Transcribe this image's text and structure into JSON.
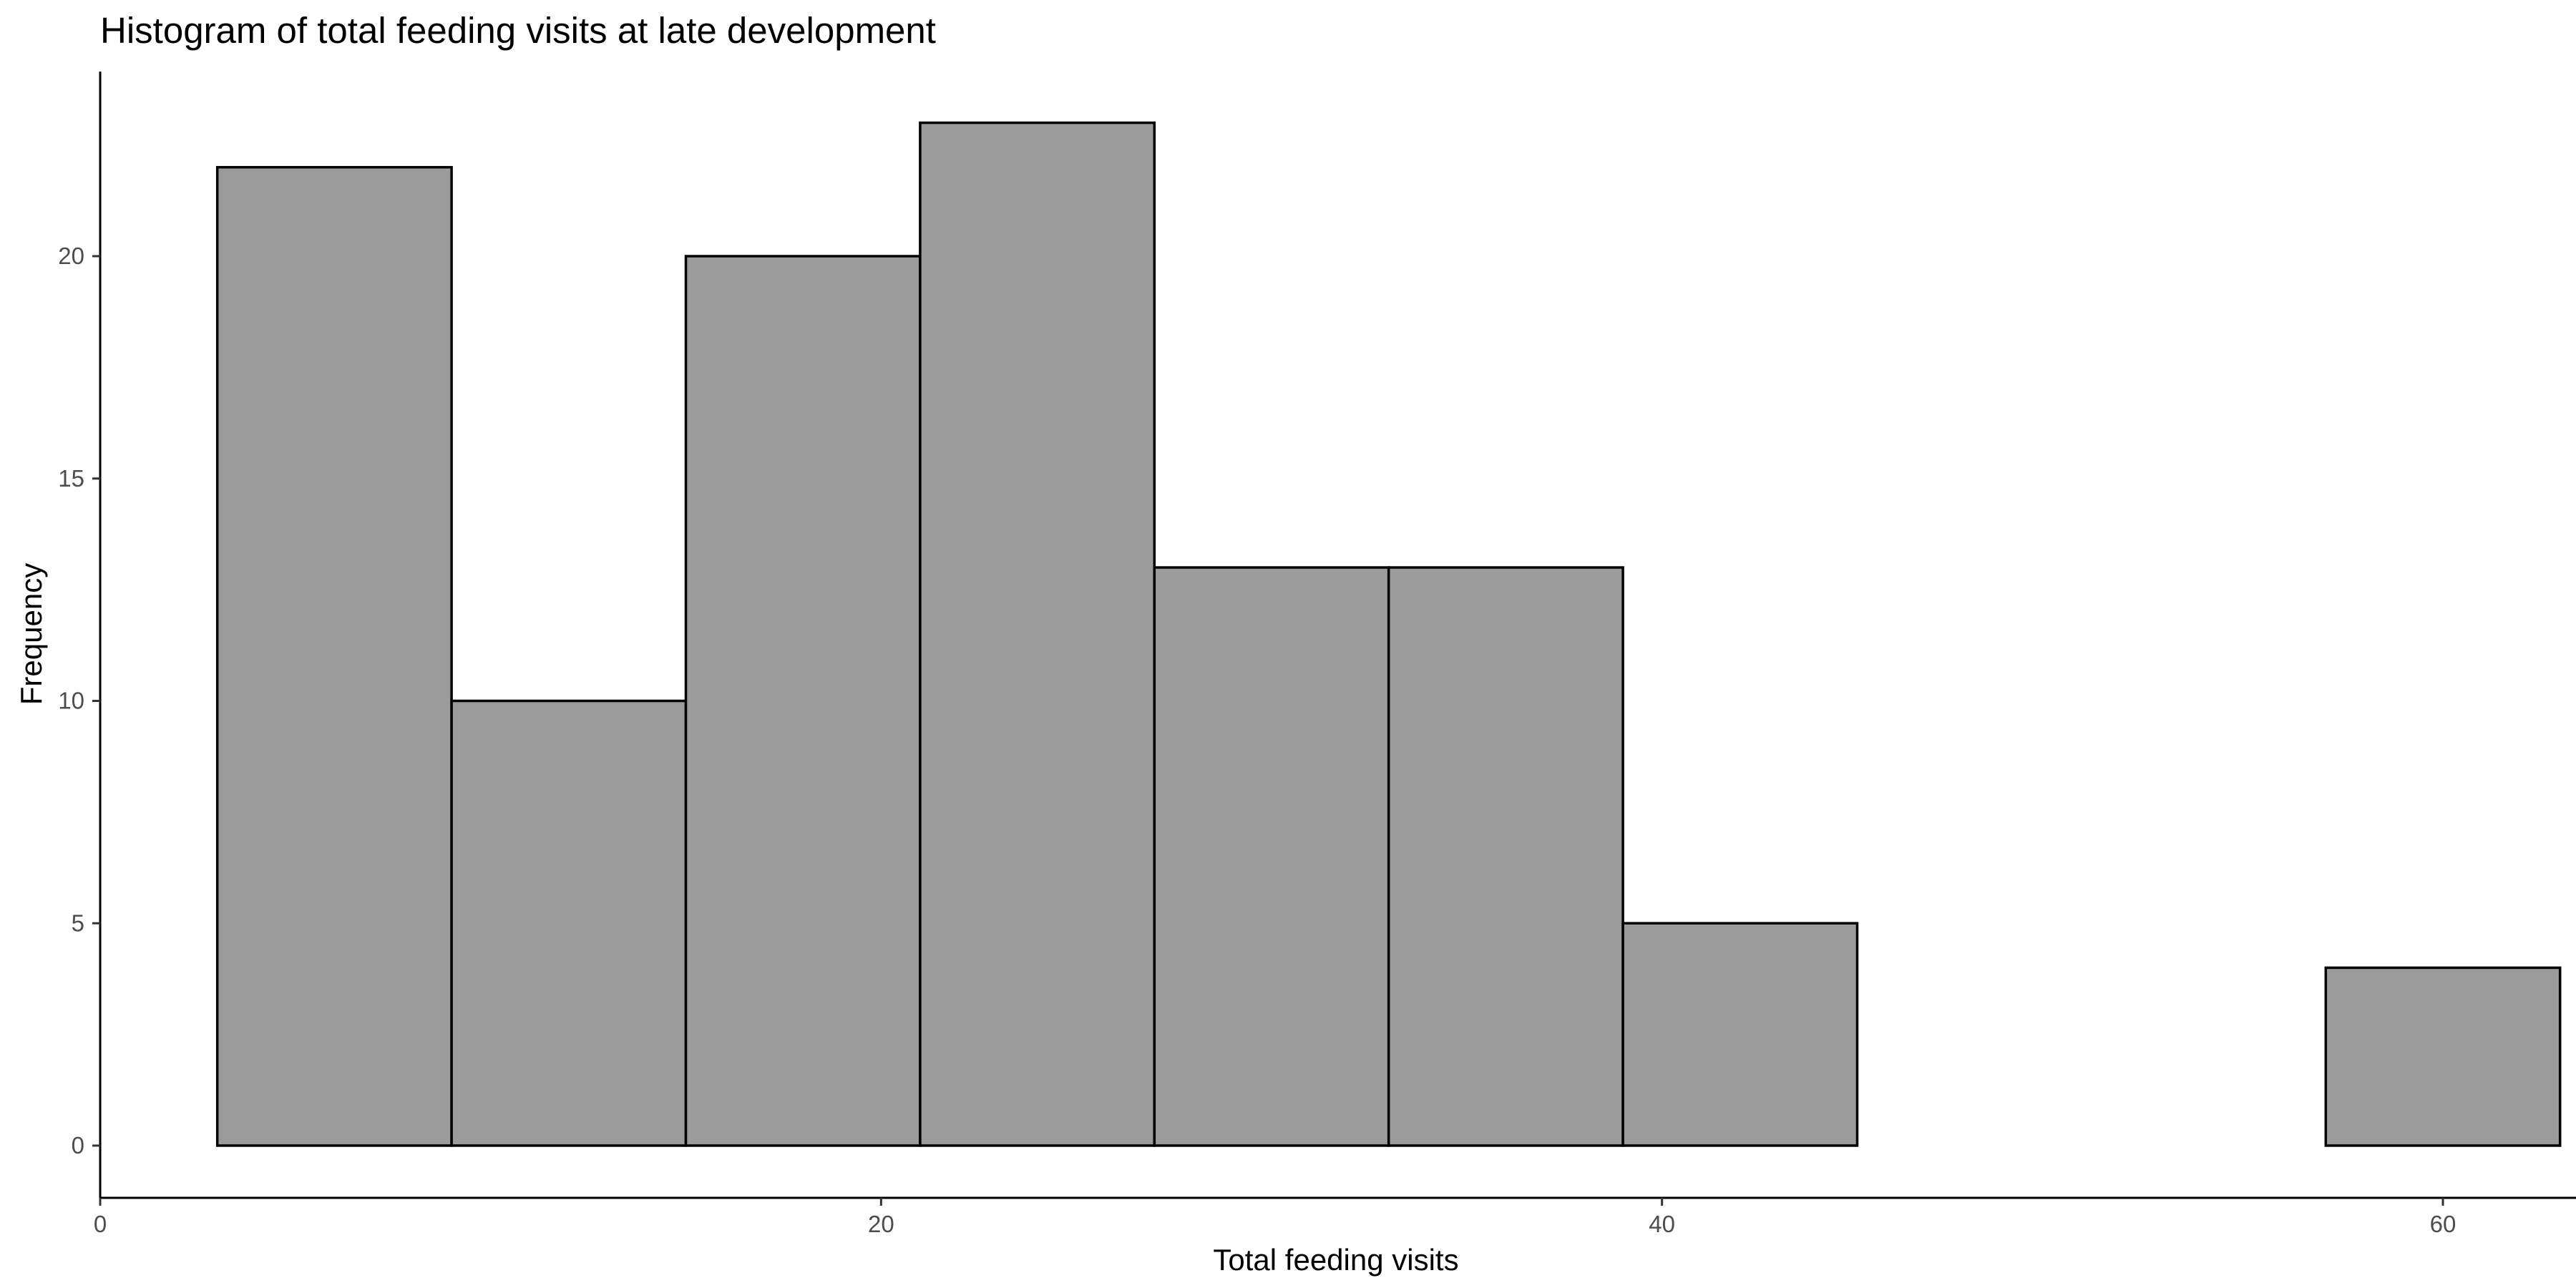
{
  "chart_data": {
    "type": "bar",
    "subtype": "histogram",
    "title": "Histogram of total feeding visits at late development",
    "xlabel": "Total feeding visits",
    "ylabel": "Frequency",
    "xlim": [
      0,
      66
    ],
    "ylim": [
      0,
      24
    ],
    "x_ticks": [
      0,
      20,
      40,
      60
    ],
    "y_ticks": [
      0,
      5,
      10,
      15,
      20
    ],
    "grid": false,
    "bins": [
      {
        "x_start": 3,
        "x_end": 9,
        "count": 22
      },
      {
        "x_start": 9,
        "x_end": 15,
        "count": 10
      },
      {
        "x_start": 15,
        "x_end": 21,
        "count": 20
      },
      {
        "x_start": 21,
        "x_end": 27,
        "count": 23
      },
      {
        "x_start": 27,
        "x_end": 33,
        "count": 13
      },
      {
        "x_start": 33,
        "x_end": 39,
        "count": 13
      },
      {
        "x_start": 39,
        "x_end": 45,
        "count": 5
      },
      {
        "x_start": 45,
        "x_end": 51,
        "count": 0
      },
      {
        "x_start": 51,
        "x_end": 57,
        "count": 0
      },
      {
        "x_start": 57,
        "x_end": 63,
        "count": 4
      }
    ],
    "colors": {
      "bar_fill": "#9b9b9b",
      "bar_outline": "#000000"
    }
  }
}
